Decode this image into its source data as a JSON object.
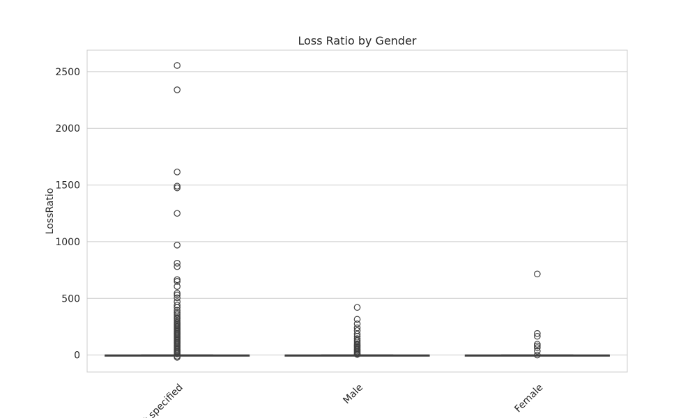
{
  "chart_data": {
    "type": "box",
    "title": "Loss Ratio by Gender",
    "xlabel": "",
    "ylabel": "LossRatio",
    "ylim": [
      -150,
      2690
    ],
    "yticks": [
      0,
      500,
      1000,
      1500,
      2000,
      2500
    ],
    "grid": true,
    "categories": [
      "Not specified",
      "Male",
      "Female"
    ],
    "boxes": [
      {
        "category": "Not specified",
        "q1": 0,
        "median": 0,
        "q3": 0,
        "whisker_low": 0,
        "whisker_high": 0,
        "outliers": [
          2555,
          2340,
          1615,
          1490,
          1475,
          1250,
          970,
          810,
          780,
          665,
          650,
          605,
          545,
          530,
          505,
          470,
          440,
          420,
          395,
          375,
          360,
          345,
          330,
          320,
          305,
          290,
          280,
          270,
          260,
          250,
          240,
          230,
          220,
          210,
          200,
          190,
          180,
          170,
          160,
          150,
          140,
          130,
          120,
          110,
          100,
          90,
          80,
          70,
          60,
          50,
          40,
          30,
          20,
          10,
          -10,
          -20
        ]
      },
      {
        "category": "Male",
        "q1": 0,
        "median": 0,
        "q3": 0,
        "whisker_low": 0,
        "whisker_high": 0,
        "outliers": [
          420,
          315,
          275,
          240,
          215,
          185,
          165,
          145,
          130,
          115,
          100,
          90,
          80,
          70,
          60,
          50,
          40,
          30,
          20,
          10,
          5
        ]
      },
      {
        "category": "Female",
        "q1": 0,
        "median": 0,
        "q3": 0,
        "whisker_low": 0,
        "whisker_high": 0,
        "outliers": [
          715,
          190,
          165,
          95,
          80,
          65,
          35,
          0
        ]
      }
    ],
    "colors": {
      "box_stroke": "#3f3f3f",
      "box_fill": "#4c72b0",
      "grid": "#cccccc",
      "frame": "#cccccc"
    }
  }
}
